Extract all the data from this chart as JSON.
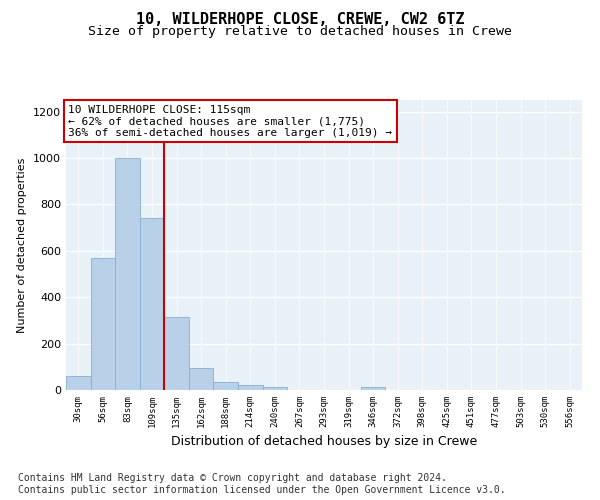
{
  "title1": "10, WILDERHOPE CLOSE, CREWE, CW2 6TZ",
  "title2": "Size of property relative to detached houses in Crewe",
  "xlabel": "Distribution of detached houses by size in Crewe",
  "ylabel": "Number of detached properties",
  "categories": [
    "30sqm",
    "56sqm",
    "83sqm",
    "109sqm",
    "135sqm",
    "162sqm",
    "188sqm",
    "214sqm",
    "240sqm",
    "267sqm",
    "293sqm",
    "319sqm",
    "346sqm",
    "372sqm",
    "398sqm",
    "425sqm",
    "451sqm",
    "477sqm",
    "503sqm",
    "530sqm",
    "556sqm"
  ],
  "values": [
    60,
    570,
    1000,
    740,
    315,
    95,
    35,
    22,
    14,
    0,
    0,
    0,
    14,
    0,
    0,
    0,
    0,
    0,
    0,
    0,
    0
  ],
  "bar_color": "#b8d0e8",
  "bar_edge_color": "#8ab0d0",
  "red_line_index": 3,
  "annotation_text": "10 WILDERHOPE CLOSE: 115sqm\n← 62% of detached houses are smaller (1,775)\n36% of semi-detached houses are larger (1,019) →",
  "annotation_box_facecolor": "#ffffff",
  "annotation_box_edgecolor": "#cc0000",
  "red_line_color": "#cc0000",
  "footer": "Contains HM Land Registry data © Crown copyright and database right 2024.\nContains public sector information licensed under the Open Government Licence v3.0.",
  "ylim": [
    0,
    1250
  ],
  "yticks": [
    0,
    200,
    400,
    600,
    800,
    1000,
    1200
  ],
  "fig_bg_color": "#ffffff",
  "plot_bg_color": "#e8f0f8",
  "title1_fontsize": 11,
  "title2_fontsize": 9.5,
  "xlabel_fontsize": 9,
  "ylabel_fontsize": 8,
  "footer_fontsize": 7,
  "annotation_fontsize": 8
}
